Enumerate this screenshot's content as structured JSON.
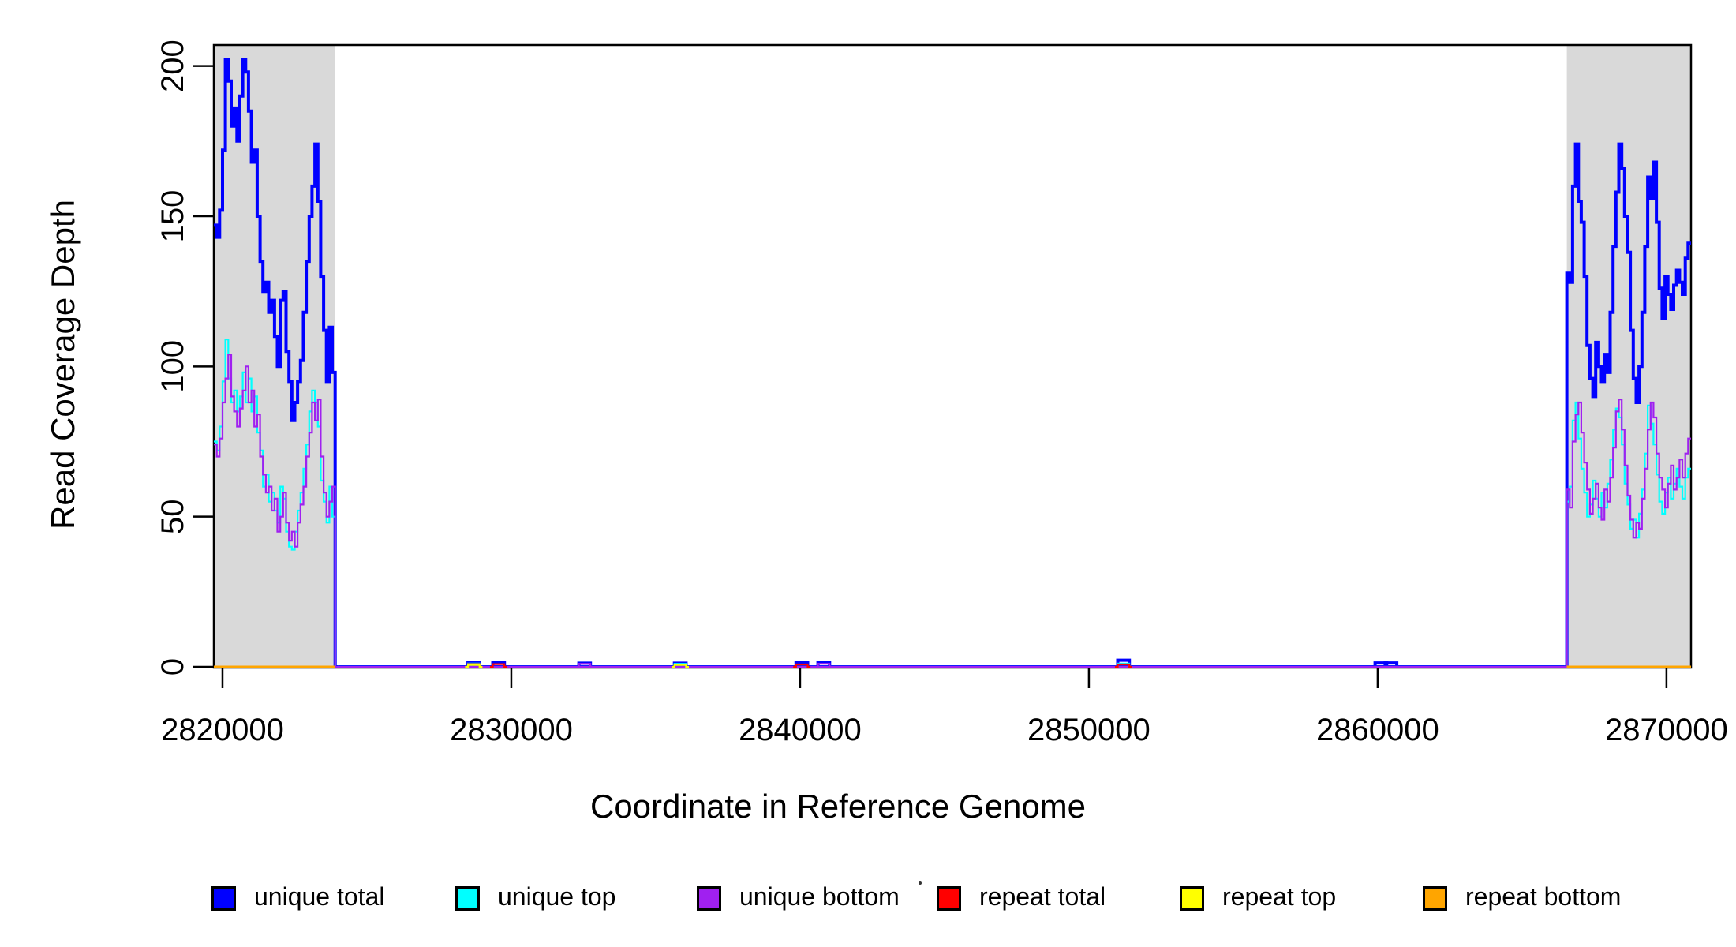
{
  "chart_data": {
    "type": "line",
    "title": "",
    "xlabel": "Coordinate in Reference Genome",
    "ylabel": "Read Coverage Depth",
    "xlim": [
      2819700,
      2870850
    ],
    "ylim": [
      0,
      207
    ],
    "xticks": [
      2820000,
      2830000,
      2840000,
      2850000,
      2860000,
      2870000
    ],
    "yticks": [
      0,
      50,
      100,
      150,
      200
    ],
    "grid": false,
    "shade_color": "#d9d9d9",
    "axis_color": "#000000",
    "shaded_regions": [
      {
        "start": 2819700,
        "end": 2823900
      },
      {
        "start": 2866550,
        "end": 2870850
      }
    ],
    "legend_position": "bottom",
    "legend": [
      {
        "label": "unique total",
        "color": "#0000FF"
      },
      {
        "label": "unique top",
        "color": "#00FFFF"
      },
      {
        "label": "unique bottom",
        "color": "#A020F0"
      },
      {
        "label": "repeat total",
        "color": "#FF0000"
      },
      {
        "label": "repeat top",
        "color": "#FFFF00"
      },
      {
        "label": "repeat bottom",
        "color": "#FFA500"
      }
    ],
    "series": [
      {
        "name": "unique total",
        "color": "#0000FF",
        "width": 4,
        "segments": [
          {
            "start": 2819700,
            "step": 100,
            "values": [
              147,
              143,
              152,
              172,
              202,
              195,
              180,
              186,
              175,
              190,
              202,
              198,
              185,
              168,
              172,
              150,
              135,
              125,
              128,
              118,
              122,
              110,
              100,
              122,
              125,
              105,
              95,
              82,
              88,
              95,
              102,
              118,
              135,
              150,
              160,
              174,
              155,
              130,
              112,
              95,
              113,
              98,
              0
            ]
          },
          {
            "start": 2824000,
            "step": 42550,
            "values": [
              0
            ]
          },
          {
            "start": 2828400,
            "step": 100,
            "values": [
              0,
              1.5,
              1.5,
              1.5,
              1.5,
              0
            ]
          },
          {
            "start": 2829260,
            "step": 100,
            "values": [
              0,
              1.5,
              1.5,
              1.5,
              1.5,
              0
            ]
          },
          {
            "start": 2832240,
            "step": 100,
            "values": [
              0,
              1.2,
              1.2,
              1.2,
              1.2,
              0
            ]
          },
          {
            "start": 2835550,
            "step": 100,
            "values": [
              0,
              1.2,
              1.2,
              1.2,
              1.2,
              0
            ]
          },
          {
            "start": 2839760,
            "step": 100,
            "values": [
              0,
              1.5,
              1.5,
              1.5,
              1.5,
              0
            ]
          },
          {
            "start": 2840520,
            "step": 100,
            "values": [
              0,
              1.5,
              1.5,
              1.5,
              1.5,
              0
            ]
          },
          {
            "start": 2850900,
            "step": 100,
            "values": [
              0,
              2.2,
              2.2,
              2.2,
              2.2,
              0
            ]
          },
          {
            "start": 2859810,
            "step": 100,
            "values": [
              0,
              1.3,
              1.3,
              1.3,
              1.3,
              0
            ]
          },
          {
            "start": 2860160,
            "step": 100,
            "values": [
              0,
              1.3,
              1.3,
              1.3,
              1.3,
              0
            ]
          },
          {
            "start": 2866450,
            "step": 100,
            "values": [
              0,
              131,
              128,
              160,
              174,
              155,
              148,
              130,
              107,
              96,
              90,
              108,
              100,
              95,
              104,
              98,
              118,
              140,
              158,
              174,
              166,
              150,
              138,
              112,
              96,
              88,
              100,
              118,
              140,
              163,
              156,
              168,
              148,
              126,
              116,
              130,
              124,
              119,
              127,
              132,
              128,
              124,
              136,
              141
            ]
          }
        ]
      },
      {
        "name": "unique top",
        "color": "#00FFFF",
        "width": 2.2,
        "segments": [
          {
            "start": 2819700,
            "step": 100,
            "values": [
              75,
              72,
              80,
              95,
              109,
              96,
              88,
              92,
              85,
              90,
              98,
              88,
              96,
              85,
              90,
              78,
              72,
              60,
              64,
              55,
              58,
              52,
              48,
              60,
              56,
              45,
              40,
              39,
              45,
              52,
              58,
              66,
              74,
              85,
              92,
              88,
              80,
              62,
              55,
              48,
              60,
              50,
              0
            ]
          },
          {
            "start": 2824000,
            "step": 42550,
            "values": [
              0
            ]
          },
          {
            "start": 2828400,
            "step": 100,
            "values": [
              0,
              1.1,
              1.1,
              1.1,
              1.1,
              0
            ]
          },
          {
            "start": 2835550,
            "step": 100,
            "values": [
              0,
              1.0,
              1.0,
              1.0,
              1.0,
              0
            ]
          },
          {
            "start": 2850900,
            "step": 100,
            "values": [
              0,
              1.1,
              1.1,
              1.1,
              1.1,
              0
            ]
          },
          {
            "start": 2866450,
            "step": 100,
            "values": [
              0,
              55,
              60,
              82,
              88,
              76,
              66,
              58,
              50,
              54,
              62,
              56,
              50,
              58,
              53,
              61,
              69,
              79,
              86,
              83,
              74,
              61,
              54,
              46,
              49,
              43,
              51,
              59,
              71,
              87,
              81,
              74,
              64,
              55,
              51,
              58,
              63,
              56,
              61,
              66,
              60,
              56,
              63,
              66
            ]
          }
        ]
      },
      {
        "name": "unique bottom",
        "color": "#A020F0",
        "width": 2.2,
        "segments": [
          {
            "start": 2819700,
            "step": 100,
            "values": [
              74,
              70,
              76,
              88,
              96,
              104,
              90,
              85,
              80,
              86,
              92,
              100,
              88,
              92,
              80,
              84,
              70,
              64,
              58,
              60,
              52,
              56,
              45,
              50,
              58,
              48,
              42,
              45,
              40,
              48,
              54,
              60,
              70,
              78,
              88,
              82,
              89,
              70,
              58,
              50,
              55,
              60,
              0
            ]
          },
          {
            "start": 2824000,
            "step": 42550,
            "values": [
              0
            ]
          },
          {
            "start": 2832240,
            "step": 100,
            "values": [
              0,
              1.0,
              1.0,
              1.0,
              1.0,
              0
            ]
          },
          {
            "start": 2840520,
            "step": 100,
            "values": [
              0,
              1.0,
              1.0,
              1.0,
              1.0,
              0
            ]
          },
          {
            "start": 2866450,
            "step": 100,
            "values": [
              0,
              59,
              53,
              75,
              84,
              88,
              78,
              68,
              59,
              51,
              56,
              61,
              53,
              49,
              59,
              55,
              63,
              73,
              85,
              89,
              79,
              67,
              57,
              49,
              43,
              48,
              46,
              56,
              66,
              79,
              88,
              83,
              71,
              63,
              59,
              53,
              61,
              67,
              59,
              63,
              69,
              63,
              71,
              76
            ]
          }
        ]
      },
      {
        "name": "repeat total",
        "color": "#FF0000",
        "width": 2.2,
        "segments": [
          {
            "start": 2819700,
            "step": 4200,
            "values": [
              0
            ]
          },
          {
            "start": 2828400,
            "step": 100,
            "values": [
              0,
              0.9,
              0.9,
              0.9,
              0.9,
              0
            ]
          },
          {
            "start": 2829260,
            "step": 100,
            "values": [
              0,
              0.9,
              0.9,
              0.9,
              0.9,
              0
            ]
          },
          {
            "start": 2839760,
            "step": 100,
            "values": [
              0,
              0.8,
              0.8,
              0.8,
              0.8,
              0
            ]
          },
          {
            "start": 2850900,
            "step": 100,
            "values": [
              0,
              0.8,
              0.8,
              0.8,
              0.8,
              0
            ]
          },
          {
            "start": 2866550,
            "step": 4300,
            "values": [
              0
            ]
          }
        ]
      },
      {
        "name": "repeat top",
        "color": "#FFFF00",
        "width": 2.2,
        "segments": [
          {
            "start": 2819700,
            "step": 4200,
            "values": [
              0
            ]
          },
          {
            "start": 2828400,
            "step": 100,
            "values": [
              0,
              0.6,
              0.6,
              0.6,
              0.6,
              0
            ]
          },
          {
            "start": 2835550,
            "step": 100,
            "values": [
              0,
              0.6,
              0.6,
              0.6,
              0.6,
              0
            ]
          },
          {
            "start": 2866550,
            "step": 4300,
            "values": [
              0
            ]
          }
        ]
      },
      {
        "name": "repeat bottom",
        "color": "#FFA500",
        "width": 3,
        "segments": [
          {
            "start": 2819700,
            "step": 4200,
            "values": [
              0
            ]
          },
          {
            "start": 2866550,
            "step": 4300,
            "values": [
              0
            ]
          }
        ]
      }
    ]
  }
}
